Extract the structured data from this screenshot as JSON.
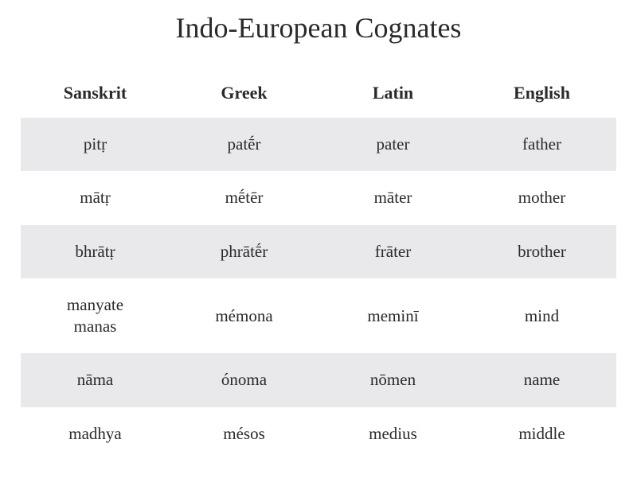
{
  "title": "Indo-European Cognates",
  "table": {
    "columns": [
      "Sanskrit",
      "Greek",
      "Latin",
      "English"
    ],
    "rows": [
      [
        "pitṛ",
        "patḗr",
        "pater",
        "father"
      ],
      [
        "mātṛ",
        "mḗtēr",
        "māter",
        "mother"
      ],
      [
        "bhrātṛ",
        "phrātḗr",
        "frāter",
        "brother"
      ],
      [
        "manyate\nmanas",
        "mémona",
        "meminī",
        "mind"
      ],
      [
        "nāma",
        "ónoma",
        "nōmen",
        "name"
      ],
      [
        "madhya",
        "mésos",
        "medius",
        "middle"
      ]
    ],
    "header_fontsize": 22,
    "cell_fontsize": 21,
    "title_fontsize": 36,
    "alt_row_bg": "#e9e9ec",
    "plain_row_bg": "#ffffff",
    "text_color": "#2a2a2a",
    "background_color": "#ffffff"
  }
}
